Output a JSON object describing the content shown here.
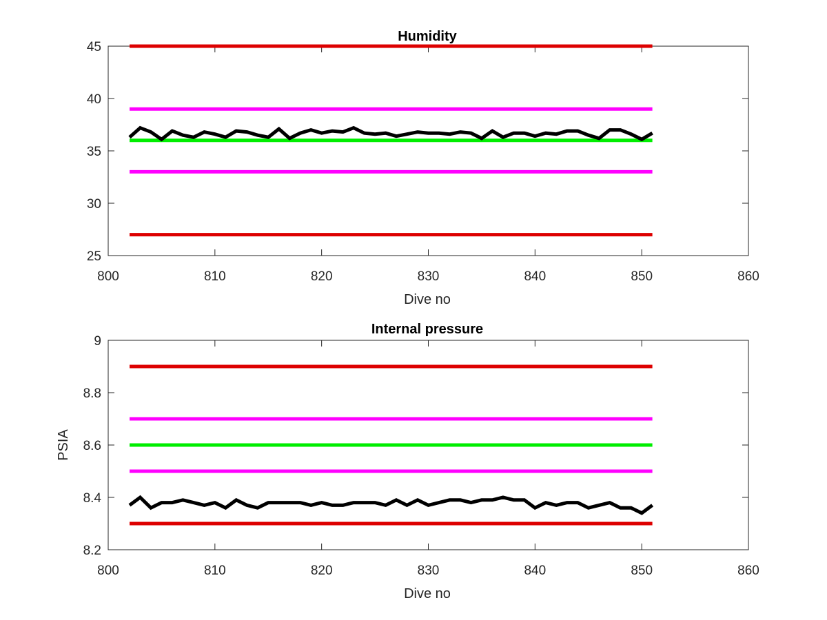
{
  "figure": {
    "background": "#ffffff"
  },
  "chart_data": [
    {
      "type": "line",
      "title": "Humidity",
      "xlabel": "Dive no",
      "ylabel": "",
      "xlim": [
        800,
        860
      ],
      "ylim": [
        25,
        45
      ],
      "xticks": [
        "800",
        "810",
        "820",
        "830",
        "840",
        "850",
        "860"
      ],
      "yticks": [
        "25",
        "30",
        "35",
        "40",
        "45"
      ],
      "grid": false,
      "series": [
        {
          "color": "#dd0000",
          "x": [
            802,
            851
          ],
          "y": [
            45,
            45
          ]
        },
        {
          "color": "#ff00ff",
          "x": [
            802,
            851
          ],
          "y": [
            39,
            39
          ]
        },
        {
          "color": "#00ee00",
          "x": [
            802,
            851
          ],
          "y": [
            36,
            36
          ]
        },
        {
          "color": "#ff00ff",
          "x": [
            802,
            851
          ],
          "y": [
            33,
            33
          ]
        },
        {
          "color": "#dd0000",
          "x": [
            802,
            851
          ],
          "y": [
            27,
            27
          ]
        },
        {
          "color": "#000000",
          "x": [
            802,
            803,
            804,
            805,
            806,
            807,
            808,
            809,
            810,
            811,
            812,
            813,
            814,
            815,
            816,
            817,
            818,
            819,
            820,
            821,
            822,
            823,
            824,
            825,
            826,
            827,
            828,
            829,
            830,
            831,
            832,
            833,
            834,
            835,
            836,
            837,
            838,
            839,
            840,
            841,
            842,
            843,
            844,
            845,
            846,
            847,
            848,
            849,
            850,
            851
          ],
          "y": [
            36.3,
            37.2,
            36.8,
            36.1,
            36.9,
            36.5,
            36.3,
            36.8,
            36.6,
            36.3,
            36.9,
            36.8,
            36.5,
            36.3,
            37.1,
            36.2,
            36.7,
            37.0,
            36.7,
            36.9,
            36.8,
            37.2,
            36.7,
            36.6,
            36.7,
            36.4,
            36.6,
            36.8,
            36.7,
            36.7,
            36.6,
            36.8,
            36.7,
            36.2,
            36.9,
            36.3,
            36.7,
            36.7,
            36.4,
            36.7,
            36.6,
            36.9,
            36.9,
            36.5,
            36.2,
            37.0,
            37.0,
            36.6,
            36.1,
            36.7
          ]
        }
      ]
    },
    {
      "type": "line",
      "title": "Internal pressure",
      "xlabel": "Dive no",
      "ylabel": "PSIA",
      "xlim": [
        800,
        860
      ],
      "ylim": [
        8.2,
        9.0
      ],
      "xticks": [
        "800",
        "810",
        "820",
        "830",
        "840",
        "850",
        "860"
      ],
      "yticks": [
        "8.2",
        "8.4",
        "8.6",
        "8.8",
        "9"
      ],
      "grid": false,
      "series": [
        {
          "color": "#dd0000",
          "x": [
            802,
            851
          ],
          "y": [
            8.9,
            8.9
          ]
        },
        {
          "color": "#ff00ff",
          "x": [
            802,
            851
          ],
          "y": [
            8.7,
            8.7
          ]
        },
        {
          "color": "#00ee00",
          "x": [
            802,
            851
          ],
          "y": [
            8.6,
            8.6
          ]
        },
        {
          "color": "#ff00ff",
          "x": [
            802,
            851
          ],
          "y": [
            8.5,
            8.5
          ]
        },
        {
          "color": "#dd0000",
          "x": [
            802,
            851
          ],
          "y": [
            8.3,
            8.3
          ]
        },
        {
          "color": "#000000",
          "x": [
            802,
            803,
            804,
            805,
            806,
            807,
            808,
            809,
            810,
            811,
            812,
            813,
            814,
            815,
            816,
            817,
            818,
            819,
            820,
            821,
            822,
            823,
            824,
            825,
            826,
            827,
            828,
            829,
            830,
            831,
            832,
            833,
            834,
            835,
            836,
            837,
            838,
            839,
            840,
            841,
            842,
            843,
            844,
            845,
            846,
            847,
            848,
            849,
            850,
            851
          ],
          "y": [
            8.37,
            8.4,
            8.36,
            8.38,
            8.38,
            8.39,
            8.38,
            8.37,
            8.38,
            8.36,
            8.39,
            8.37,
            8.36,
            8.38,
            8.38,
            8.38,
            8.38,
            8.37,
            8.38,
            8.37,
            8.37,
            8.38,
            8.38,
            8.38,
            8.37,
            8.39,
            8.37,
            8.39,
            8.37,
            8.38,
            8.39,
            8.39,
            8.38,
            8.39,
            8.39,
            8.4,
            8.39,
            8.39,
            8.36,
            8.38,
            8.37,
            8.38,
            8.38,
            8.36,
            8.37,
            8.38,
            8.36,
            8.36,
            8.34,
            8.37
          ]
        }
      ]
    }
  ]
}
